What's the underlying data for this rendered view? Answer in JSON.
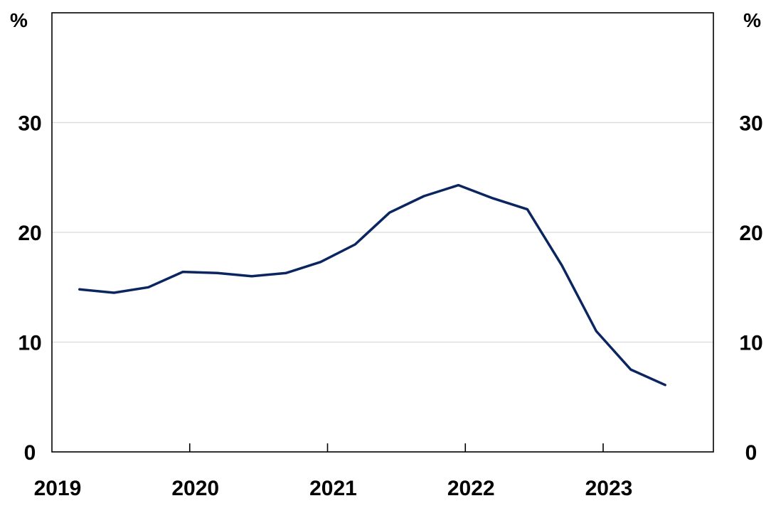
{
  "chart_data": {
    "type": "line",
    "title": "",
    "xlabel": "",
    "ylabel": "",
    "unit_left": "%",
    "unit_right": "%",
    "xlim": [
      2019,
      2023.8
    ],
    "ylim": [
      0,
      40
    ],
    "yticks": [
      0,
      10,
      20,
      30
    ],
    "ytick_labels": [
      "0",
      "10",
      "20",
      "30"
    ],
    "xticks": [
      2019,
      2020,
      2021,
      2022,
      2023
    ],
    "xtick_labels": [
      "2019",
      "2020",
      "2021",
      "2022",
      "2023"
    ],
    "grid": true,
    "legend": "none",
    "line_color": "#0b2560",
    "grid_color": "#d9d9d9",
    "series": [
      {
        "x": [
          2019.2,
          2019.45,
          2019.7,
          2019.95,
          2020.2,
          2020.45,
          2020.7,
          2020.95,
          2021.2,
          2021.45,
          2021.7,
          2021.95,
          2022.2,
          2022.45,
          2022.7,
          2022.95,
          2023.2,
          2023.45
        ],
        "values": [
          14.8,
          14.5,
          15.0,
          16.4,
          16.3,
          16.0,
          16.3,
          17.3,
          18.9,
          21.8,
          23.3,
          24.3,
          23.1,
          22.1,
          17.0,
          11.0,
          7.5,
          6.1
        ]
      }
    ]
  }
}
